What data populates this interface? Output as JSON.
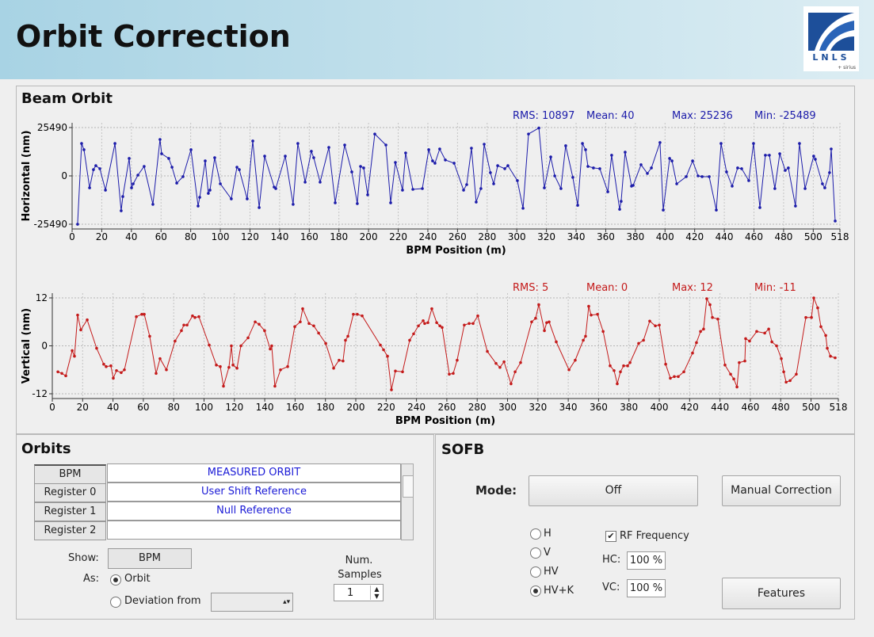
{
  "header": {
    "title": "Orbit Correction",
    "logo_text": "LNLS",
    "logo_subtext": "+ sirius"
  },
  "beam_orbit": {
    "title": "Beam Orbit"
  },
  "chart_data": [
    {
      "type": "line",
      "y_label": "Horizontal (nm)",
      "x_label": "BPM Position (m)",
      "annotations": [
        "RMS: 10897",
        "Mean: 40",
        "Max: 25236",
        "Min: -25489"
      ],
      "color": "#1c1caa",
      "x": [
        3.7,
        6.4,
        8.0,
        11.8,
        14.4,
        16.0,
        18.7,
        22.5,
        28.9,
        33.1,
        34.2,
        38.5,
        40.1,
        41.2,
        44.4,
        48.6,
        54.5,
        59.3,
        60.4,
        65.2,
        67.4,
        70.6,
        74.8,
        80.2,
        85.0,
        86.1,
        89.8,
        91.9,
        93.0,
        96.2,
        100.0,
        107.4,
        111.2,
        112.8,
        118.1,
        121.9,
        126.2,
        129.9,
        136.3,
        137.4,
        143.8,
        149.1,
        152.3,
        157.2,
        161.4,
        163.0,
        167.3,
        173.2,
        177.5,
        183.9,
        188.7,
        192.4,
        194.6,
        196.7,
        199.4,
        204.2,
        211.7,
        214.9,
        218.1,
        222.9,
        225.0,
        229.9,
        236.3,
        240.6,
        243.2,
        244.8,
        248.0,
        251.8,
        257.7,
        264.1,
        266.2,
        269.4,
        272.6,
        275.8,
        278.0,
        282.2,
        284.4,
        287.1,
        291.9,
        294.0,
        300.4,
        304.2,
        307.9,
        314.9,
        318.6,
        322.9,
        325.6,
        329.8,
        333.0,
        337.8,
        341.1,
        344.3,
        346.4,
        348.0,
        351.7,
        356.0,
        361.4,
        364.0,
        369.4,
        370.4,
        373.1,
        377.4,
        378.5,
        383.8,
        388.1,
        390.8,
        396.6,
        398.8,
        403.1,
        404.7,
        407.9,
        414.3,
        418.6,
        422.3,
        425.0,
        429.8,
        434.6,
        437.8,
        441.5,
        445.3,
        449.0,
        451.7,
        456.5,
        459.7,
        464.0,
        467.7,
        470.4,
        474.1,
        477.4,
        481.1,
        483.2,
        488.0,
        490.7,
        494.5,
        500.3,
        501.4,
        506.2,
        507.8,
        511.0,
        512.1,
        514.8
      ],
      "values": [
        -25489,
        17100,
        13800,
        -6300,
        3300,
        5400,
        3800,
        -7500,
        17100,
        -18400,
        -10900,
        9200,
        -6300,
        -4200,
        400,
        5000,
        -15000,
        19200,
        11700,
        9200,
        4600,
        -3800,
        -400,
        13800,
        -15900,
        -11300,
        7900,
        -9200,
        -7500,
        9600,
        -4200,
        -12100,
        4600,
        3300,
        -12100,
        18400,
        -16700,
        10400,
        -5900,
        -6700,
        10400,
        -15000,
        17100,
        -3300,
        13000,
        9600,
        -3300,
        15000,
        -14200,
        16300,
        2100,
        -14600,
        5000,
        4200,
        -10000,
        22100,
        16300,
        -14200,
        7100,
        -7500,
        12100,
        -7100,
        -6700,
        13800,
        7900,
        6700,
        14200,
        8400,
        6700,
        -7500,
        -4600,
        14600,
        -13800,
        -6700,
        16700,
        1700,
        -4200,
        5400,
        3800,
        5400,
        -2500,
        -17100,
        22100,
        25236,
        -6300,
        10000,
        0,
        -6700,
        15900,
        -800,
        -15500,
        17100,
        13800,
        5000,
        4200,
        3800,
        -8400,
        10900,
        -17600,
        -13400,
        12500,
        -5400,
        -5000,
        5900,
        1300,
        4200,
        17600,
        -18000,
        9200,
        7900,
        -4200,
        -400,
        7900,
        0,
        -400,
        -400,
        -18000,
        17100,
        2100,
        -5400,
        4200,
        3800,
        -2500,
        17100,
        -16700,
        10900,
        10900,
        -6700,
        11700,
        2900,
        4200,
        -15900,
        17100,
        -6700,
        10400,
        8800,
        -4200,
        -6300,
        1700,
        14200,
        -23800
      ],
      "xlim": [
        0,
        518
      ],
      "xticks": [
        0,
        20,
        40,
        60,
        80,
        100,
        120,
        140,
        160,
        180,
        200,
        220,
        240,
        260,
        280,
        300,
        320,
        340,
        360,
        380,
        400,
        420,
        440,
        460,
        480,
        500,
        518
      ],
      "ylim": [
        -25490,
        25490
      ],
      "yticks": [
        -25490,
        0,
        25490
      ],
      "grid": true
    },
    {
      "type": "line",
      "y_label": "Vertical (nm)",
      "x_label": "BPM Position (m)",
      "annotations": [
        "RMS: 5",
        "Mean: 0",
        "Max: 12",
        "Min: -11"
      ],
      "color": "#c41a1a",
      "x": [
        3.7,
        6.3,
        8.9,
        13.1,
        14.6,
        16.7,
        18.8,
        23.0,
        29.2,
        33.9,
        35.5,
        38.6,
        40.2,
        42.3,
        45.4,
        47.5,
        55.4,
        59.0,
        60.6,
        64.2,
        68.4,
        71.0,
        75.2,
        80.9,
        85.1,
        86.7,
        88.8,
        92.4,
        94.0,
        96.6,
        103.4,
        108.1,
        110.7,
        112.8,
        116.4,
        118.0,
        119.1,
        121.7,
        124.3,
        129.0,
        133.7,
        136.3,
        139.9,
        143.6,
        144.6,
        146.7,
        150.4,
        155.1,
        159.8,
        163.4,
        165.0,
        169.2,
        172.3,
        175.5,
        180.2,
        185.4,
        189.0,
        191.6,
        193.2,
        194.8,
        198.4,
        201.0,
        204.2,
        216.2,
        218.3,
        220.9,
        223.5,
        226.1,
        230.8,
        235.5,
        238.1,
        241.3,
        244.4,
        245.4,
        247.5,
        250.1,
        253.3,
        255.4,
        256.9,
        261.6,
        264.2,
        266.8,
        271.5,
        274.7,
        277.3,
        280.4,
        286.7,
        292.4,
        295.0,
        297.7,
        302.3,
        305.0,
        308.6,
        315.9,
        318.5,
        320.6,
        324.3,
        325.8,
        327.4,
        332.1,
        340.5,
        344.6,
        349.9,
        351.4,
        353.5,
        355.1,
        359.3,
        363.0,
        367.6,
        370.2,
        372.3,
        374.4,
        376.5,
        379.1,
        380.7,
        386.4,
        389.6,
        393.7,
        397.4,
        400.0,
        404.2,
        407.3,
        409.9,
        412.5,
        416.2,
        421.9,
        424.5,
        427.2,
        429.2,
        431.3,
        433.4,
        435.0,
        438.6,
        443.3,
        447.0,
        449.1,
        451.2,
        452.7,
        456.4,
        456.9,
        459.5,
        464.2,
        469.5,
        472.1,
        474.2,
        477.3,
        480.4,
        482.0,
        483.6,
        486.2,
        490.3,
        496.6,
        500.3,
        501.8,
        504.4,
        506.5,
        509.7,
        510.7,
        512.8,
        515.9
      ],
      "values": [
        -6.5,
        -6.9,
        -7.5,
        -1.2,
        -2.6,
        7.7,
        4.0,
        6.5,
        -0.6,
        -4.6,
        -5.2,
        -5.0,
        -8.1,
        -6.2,
        -6.7,
        -6.0,
        7.3,
        7.9,
        7.9,
        2.4,
        -6.9,
        -3.2,
        -6.0,
        1.2,
        3.8,
        5.2,
        5.2,
        7.5,
        7.1,
        7.3,
        0.2,
        -4.8,
        -5.2,
        -10.1,
        -5.4,
        0,
        -4.8,
        -5.6,
        0,
        2.0,
        6.0,
        5.4,
        3.8,
        -0.8,
        0,
        -10.1,
        -6.0,
        -5.2,
        4.8,
        6.0,
        9.3,
        5.6,
        5.0,
        3.2,
        0.6,
        -5.6,
        -3.6,
        -3.8,
        1.4,
        2.4,
        7.9,
        7.9,
        7.5,
        0.2,
        -1.0,
        -2.6,
        -11,
        -6.3,
        -6.5,
        1.4,
        3.0,
        5.0,
        6.3,
        5.6,
        5.8,
        9.3,
        5.8,
        5.0,
        4.6,
        -7.1,
        -6.9,
        -3.6,
        5.2,
        5.6,
        5.6,
        7.5,
        -1.4,
        -4.4,
        -5.4,
        -4.0,
        -9.5,
        -6.5,
        -4.2,
        6.0,
        6.9,
        10.3,
        3.8,
        5.8,
        6.0,
        1.0,
        -6.0,
        -3.6,
        1.4,
        2.4,
        9.9,
        7.7,
        7.9,
        3.6,
        -5.0,
        -6.2,
        -9.5,
        -6.5,
        -5.0,
        -5.0,
        -4.2,
        0.6,
        1.4,
        6.2,
        5.0,
        5.2,
        -4.6,
        -8.1,
        -7.7,
        -7.7,
        -6.5,
        -1.8,
        0.8,
        3.6,
        4.2,
        11.8,
        10.3,
        7.1,
        6.7,
        -4.8,
        -7.1,
        -8.3,
        -10.3,
        -4.2,
        -3.8,
        1.8,
        1.2,
        3.6,
        3.2,
        4.2,
        1.0,
        0,
        -3.2,
        -6.5,
        -9.1,
        -8.7,
        -7.1,
        7.1,
        7.1,
        12,
        9.5,
        4.8,
        2.6,
        -0.6,
        -2.6,
        -3.0
      ],
      "xlim": [
        0,
        518
      ],
      "xticks": [
        0,
        20,
        40,
        60,
        80,
        100,
        120,
        140,
        160,
        180,
        200,
        220,
        240,
        260,
        280,
        300,
        320,
        340,
        360,
        380,
        400,
        420,
        440,
        460,
        480,
        500,
        518
      ],
      "ylim": [
        -12,
        12
      ],
      "yticks": [
        -12,
        0,
        12
      ],
      "grid": true
    }
  ],
  "orbits": {
    "title": "Orbits",
    "table": {
      "rows": [
        [
          "BPM",
          "MEASURED ORBIT"
        ],
        [
          "Register 0",
          "User Shift Reference"
        ],
        [
          "Register 1",
          "Null Reference"
        ],
        [
          "Register 2"
        ]
      ]
    },
    "show_label": "Show:",
    "show_value": "BPM",
    "as_label": "As:",
    "as_options": [
      {
        "label": "Orbit",
        "checked": true
      },
      {
        "label": "Deviation from",
        "checked": false
      }
    ],
    "num_samples_label": [
      "Num.",
      "Samples"
    ],
    "num_samples": 1
  },
  "sofb": {
    "title": "SOFB",
    "mode_label": "Mode:",
    "mode_value": "Off",
    "manual_button": "Manual Correction",
    "planes": [
      {
        "label": "H",
        "checked": false
      },
      {
        "label": "V",
        "checked": false
      },
      {
        "label": "HV",
        "checked": false
      },
      {
        "label": "HV+K",
        "checked": true
      }
    ],
    "rf_label": "RF Frequency",
    "rf_checked": true,
    "hc_label": "HC:",
    "hc_value": "100 %",
    "vc_label": "VC:",
    "vc_value": "100 %",
    "features_button": "Features"
  }
}
